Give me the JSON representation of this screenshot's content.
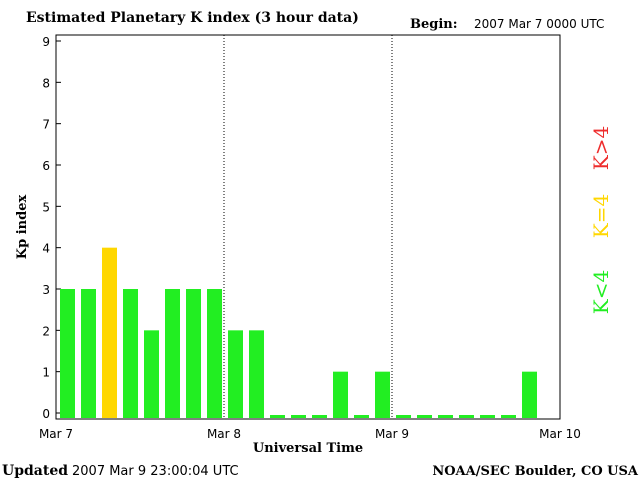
{
  "header": {
    "title": "Estimated Planetary K index (3 hour data)",
    "begin_label": "Begin:",
    "begin_value": "2007 Mar 7 0000 UTC"
  },
  "footer": {
    "updated_label": "Updated",
    "updated_value": "2007 Mar  9 23:00:04 UTC",
    "source": "NOAA/SEC Boulder, CO USA"
  },
  "legend": {
    "high": {
      "label": "K>4",
      "color": "#ee2c2c"
    },
    "mid": {
      "label": "K=4",
      "color": "#ffd700"
    },
    "low": {
      "label": "K<4",
      "color": "#22ee22"
    }
  },
  "chart_data": {
    "type": "bar",
    "xlabel": "Universal Time",
    "ylabel": "Kp index",
    "ylim": [
      0,
      9
    ],
    "y_ticks": [
      "0",
      "1",
      "2",
      "3",
      "4",
      "5",
      "6",
      "7",
      "8",
      "9"
    ],
    "x_ticks": [
      "Mar 7",
      "Mar 8",
      "Mar 9",
      "Mar 10"
    ],
    "grid": "vertical dotted day separators",
    "series": [
      {
        "values": [
          3,
          3,
          4,
          3,
          2,
          3,
          3,
          3,
          2,
          2,
          0,
          0,
          0,
          1,
          0,
          1,
          0,
          0,
          0,
          0,
          0,
          0,
          1
        ]
      }
    ]
  }
}
